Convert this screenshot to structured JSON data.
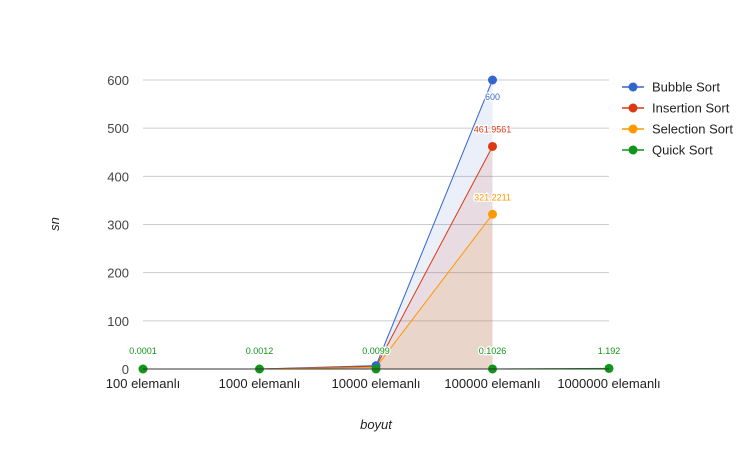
{
  "chart_data": {
    "type": "area",
    "title": "",
    "xlabel": "boyut",
    "ylabel": "sn",
    "categories": [
      "100 elemanlı",
      "1000 elemanlı",
      "10000 elemanlı",
      "100000 elemanlı",
      "1000000 elemanlı"
    ],
    "ylim": [
      0,
      600
    ],
    "yticks": [
      0,
      100,
      200,
      300,
      400,
      500,
      600
    ],
    "grid": true,
    "legend_position": "right",
    "series": [
      {
        "name": "Bubble Sort",
        "color": "#3366cc",
        "values": [
          0.0001,
          0.01,
          7,
          600,
          null
        ],
        "labels": [
          "",
          "",
          "",
          "600",
          ""
        ]
      },
      {
        "name": "Insertion Sort",
        "color": "#dc3912",
        "values": [
          0.0001,
          0.01,
          5,
          461.9561,
          null
        ],
        "labels": [
          "",
          "",
          "",
          "461.9561",
          ""
        ]
      },
      {
        "name": "Selection Sort",
        "color": "#ff9900",
        "values": [
          0.0001,
          0.01,
          3.5,
          321.2211,
          null
        ],
        "labels": [
          "",
          "",
          "",
          "321.2211",
          ""
        ]
      },
      {
        "name": "Quick Sort",
        "color": "#109618",
        "values": [
          0.0001,
          0.0012,
          0.0099,
          0.1026,
          1.192
        ],
        "labels": [
          "0.0001",
          "0.0012",
          "0.0099",
          "0.1026",
          "1.192"
        ]
      }
    ]
  }
}
